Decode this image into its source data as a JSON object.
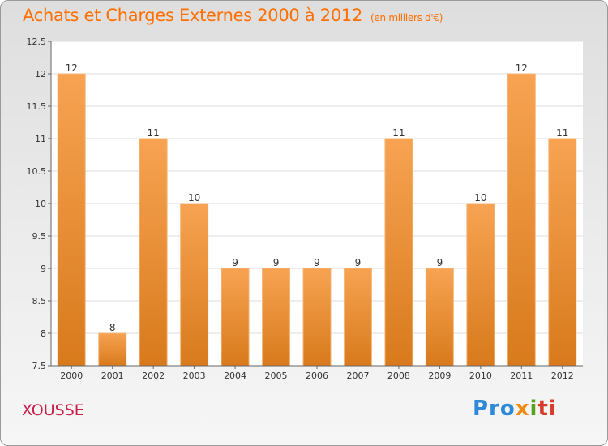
{
  "header": {
    "title": "Achats et Charges Externes 2000 à 2012",
    "unit": "(en milliers d'€)"
  },
  "footer": {
    "town": "XOUSSE",
    "logo_parts": [
      "Pro",
      "x",
      "i",
      "ti"
    ]
  },
  "colors": {
    "bar_top": "#f7a352",
    "bar_bottom": "#d87a1c",
    "title": "#ff6f00",
    "town": "#c8204a"
  },
  "chart_data": {
    "type": "bar",
    "title": "Achats et Charges Externes 2000 à 2012",
    "subtitle": "(en milliers d'€)",
    "categories": [
      "2000",
      "2001",
      "2002",
      "2003",
      "2004",
      "2005",
      "2006",
      "2007",
      "2008",
      "2009",
      "2010",
      "2011",
      "2012"
    ],
    "values": [
      12,
      8,
      11,
      10,
      9,
      9,
      9,
      9,
      11,
      9,
      10,
      12,
      11
    ],
    "ylim": [
      7.5,
      12.5
    ],
    "yticks": [
      "7.5",
      "8",
      "8.5",
      "9",
      "9.5",
      "10",
      "10.5",
      "11",
      "11.5",
      "12",
      "12.5"
    ],
    "grid": true
  }
}
